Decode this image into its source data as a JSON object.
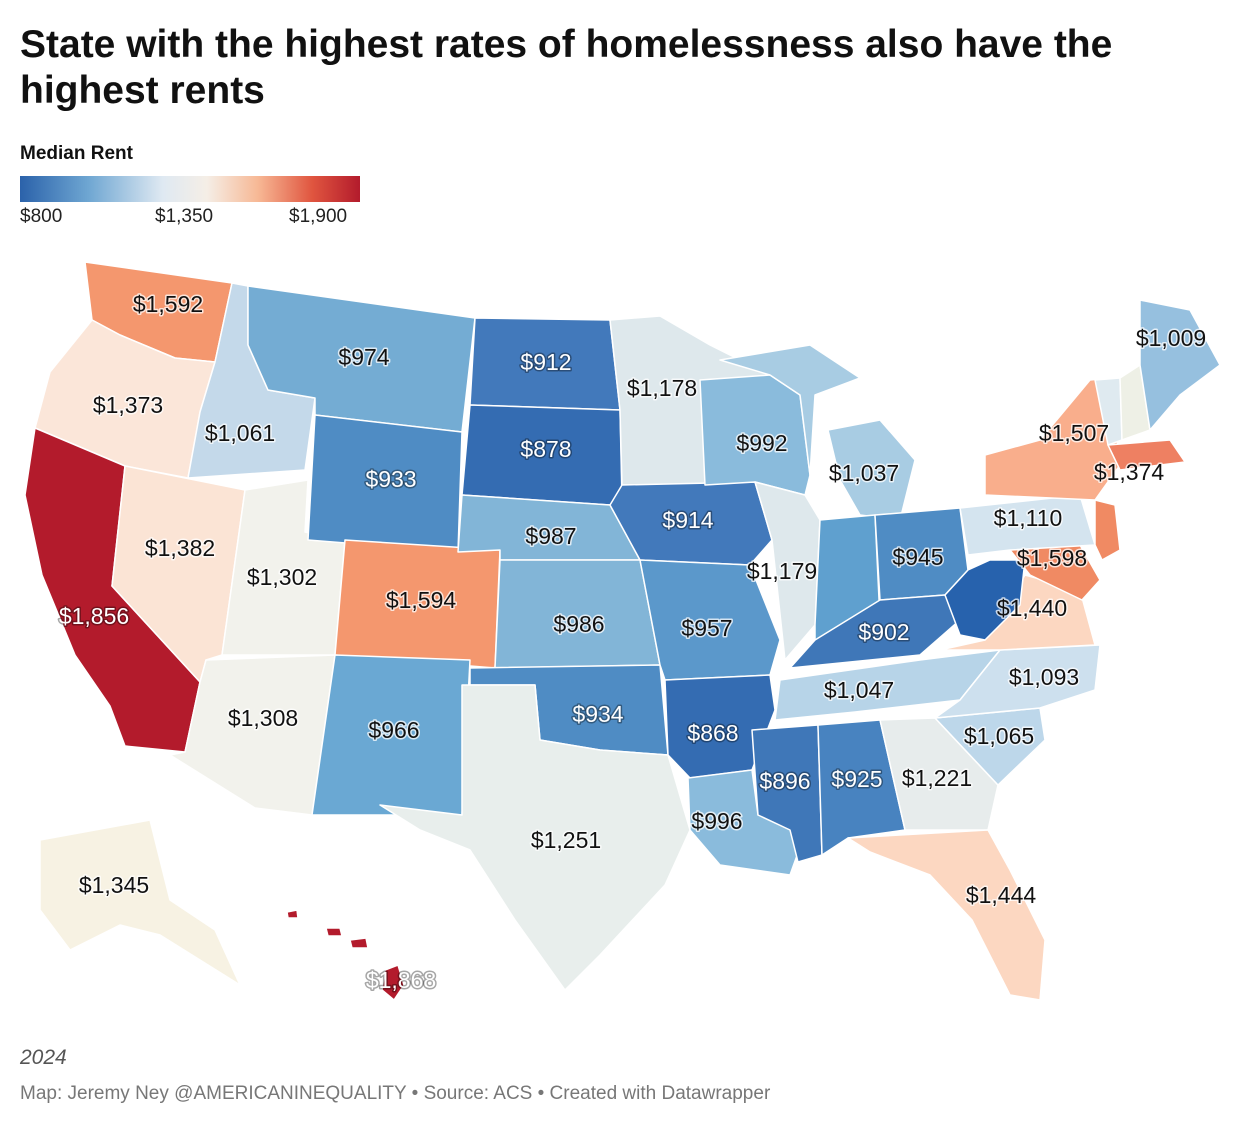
{
  "title": "State with the highest rates of homelessness also have the highest rents",
  "legend": {
    "title": "Median Rent",
    "min_label": "$800",
    "mid_label": "$1,350",
    "max_label": "$1,900",
    "color_low": "#2b62aa",
    "color_mid": "#f5eee6",
    "color_high": "#b31b2c"
  },
  "chart_data": {
    "type": "choropleth",
    "measure": "Median Rent",
    "range": [
      800,
      1900
    ],
    "states": [
      {
        "id": "WA",
        "label": "$1,592",
        "value": 1592,
        "color": "#f4976e"
      },
      {
        "id": "OR",
        "label": "$1,373",
        "value": 1373,
        "color": "#fbe6d9"
      },
      {
        "id": "CA",
        "label": "$1,856",
        "value": 1856,
        "color": "#b31b2c"
      },
      {
        "id": "ID",
        "label": "$1,061",
        "value": 1061,
        "color": "#c4d9ea"
      },
      {
        "id": "NV",
        "label": "$1,382",
        "value": 1382,
        "color": "#fbe4d5"
      },
      {
        "id": "UT",
        "label": "$1,302",
        "value": 1302,
        "color": "#f2f2ec"
      },
      {
        "id": "AZ",
        "label": "$1,308",
        "value": 1308,
        "color": "#f2f2ec"
      },
      {
        "id": "MT",
        "label": "$974",
        "value": 974,
        "color": "#74acd3"
      },
      {
        "id": "WY",
        "label": "$933",
        "value": 933,
        "color": "#4f8cc4"
      },
      {
        "id": "CO",
        "label": "$1,594",
        "value": 1594,
        "color": "#f4976e"
      },
      {
        "id": "NM",
        "label": "$966",
        "value": 966,
        "color": "#6aa8d3"
      },
      {
        "id": "ND",
        "label": "$912",
        "value": 912,
        "color": "#4279bb"
      },
      {
        "id": "SD",
        "label": "$878",
        "value": 878,
        "color": "#346cb2"
      },
      {
        "id": "NE",
        "label": "$987",
        "value": 987,
        "color": "#82b5d7"
      },
      {
        "id": "KS",
        "label": "$986",
        "value": 986,
        "color": "#82b5d7"
      },
      {
        "id": "OK",
        "label": "$934",
        "value": 934,
        "color": "#4f8cc4"
      },
      {
        "id": "TX",
        "label": "$1,251",
        "value": 1251,
        "color": "#e8eeec"
      },
      {
        "id": "MN",
        "label": "$1,178",
        "value": 1178,
        "color": "#dee8ec"
      },
      {
        "id": "IA",
        "label": "$914",
        "value": 914,
        "color": "#4279bb"
      },
      {
        "id": "MO",
        "label": "$957",
        "value": 957,
        "color": "#5b98cb"
      },
      {
        "id": "AR",
        "label": "$868",
        "value": 868,
        "color": "#346cb2"
      },
      {
        "id": "LA",
        "label": "$996",
        "value": 996,
        "color": "#8abbdc"
      },
      {
        "id": "WI",
        "label": "$992",
        "value": 992,
        "color": "#8abbdc"
      },
      {
        "id": "IL",
        "label": "$1,179",
        "value": 1179,
        "color": "#dee8ec"
      },
      {
        "id": "MI",
        "label": "$1,037",
        "value": 1037,
        "color": "#a8cce3"
      },
      {
        "id": "IN",
        "label": "",
        "value": null,
        "color": "#5fa0cf"
      },
      {
        "id": "OH",
        "label": "$945",
        "value": 945,
        "color": "#4f8cc4"
      },
      {
        "id": "KY",
        "label": "$902",
        "value": 902,
        "color": "#3f77b8"
      },
      {
        "id": "TN",
        "label": "$1,047",
        "value": 1047,
        "color": "#b7d4e8"
      },
      {
        "id": "MS",
        "label": "$896",
        "value": 896,
        "color": "#3f77b8"
      },
      {
        "id": "AL",
        "label": "$925",
        "value": 925,
        "color": "#4883c0"
      },
      {
        "id": "GA",
        "label": "$1,221",
        "value": 1221,
        "color": "#e7ecec"
      },
      {
        "id": "FL",
        "label": "$1,444",
        "value": 1444,
        "color": "#fcd7c1"
      },
      {
        "id": "SC",
        "label": "$1,065",
        "value": 1065,
        "color": "#bdd7ea"
      },
      {
        "id": "NC",
        "label": "$1,093",
        "value": 1093,
        "color": "#cde0ee"
      },
      {
        "id": "VA",
        "label": "$1,440",
        "value": 1440,
        "color": "#fcd7c1"
      },
      {
        "id": "WV",
        "label": "",
        "value": null,
        "color": "#2762ad"
      },
      {
        "id": "MD",
        "label": "$1,598",
        "value": 1598,
        "color": "#f08a63"
      },
      {
        "id": "PA",
        "label": "$1,110",
        "value": 1110,
        "color": "#d4e4ef"
      },
      {
        "id": "NY",
        "label": "$1,507",
        "value": 1507,
        "color": "#f9ae8c"
      },
      {
        "id": "NJ",
        "label": "",
        "value": null,
        "color": "#f08a63"
      },
      {
        "id": "MA",
        "label": "$1,374",
        "value": 1374,
        "color": "#ee8062"
      },
      {
        "id": "VT",
        "label": "",
        "value": null,
        "color": "#dfeaf0"
      },
      {
        "id": "NH",
        "label": "",
        "value": null,
        "color": "#eef0e6"
      },
      {
        "id": "ME",
        "label": "$1,009",
        "value": 1009,
        "color": "#96c0df"
      },
      {
        "id": "AK",
        "label": "$1,345",
        "value": 1345,
        "color": "#f7f2e3"
      },
      {
        "id": "HI",
        "label": "$1,868",
        "value": 1868,
        "color": "#b31b2c"
      }
    ]
  },
  "year": "2024",
  "footer": "Map: Jeremy Ney @AMERICANINEQUALITY • Source: ACS • Created with Datawrapper"
}
